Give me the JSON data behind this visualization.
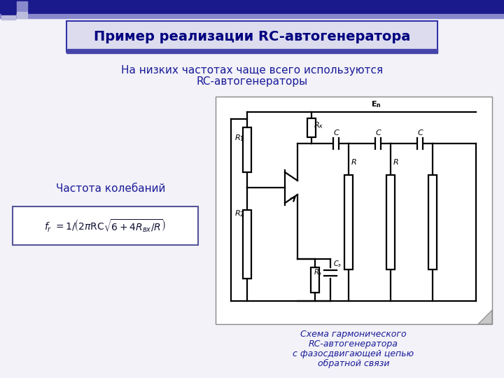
{
  "bg_color": "#f2f2f8",
  "title_text": "Пример реализации RC-автогенератора",
  "title_bg": "#dcdcee",
  "title_border": "#3333aa",
  "title_color": "#000080",
  "subtitle_line1": "На низких частотах чаще всего используются",
  "subtitle_line2": "RC-автогенераторы",
  "subtitle_color": "#1a1a99",
  "freq_label": "Частота колебаний",
  "freq_color": "#1a1a99",
  "formula_bg": "#ffffff",
  "formula_border": "#555599",
  "circuit_caption_line1": "Схема гармонического",
  "circuit_caption_line2": "RC-автогенератора",
  "circuit_caption_line3": "с фазосдвигающей цепью",
  "circuit_caption_line4": "обратной связи",
  "circuit_caption_color": "#1a1a99",
  "header_bar_color": "#1a1a8c",
  "header_bar2_color": "#8888cc",
  "decor_sq1_color": "#1a1a8c",
  "decor_sq2_color": "#8888cc",
  "decor_sq3_color": "#bbbbdd"
}
